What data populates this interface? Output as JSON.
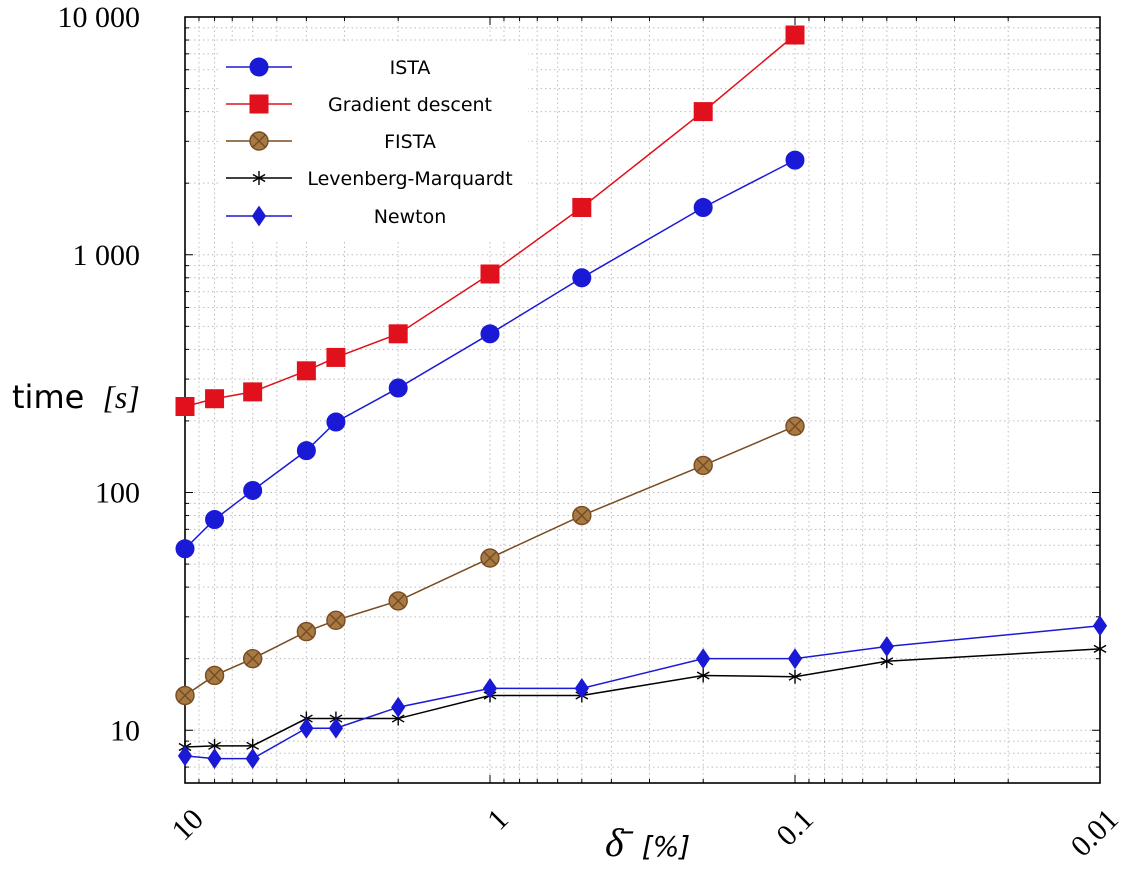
{
  "chart_data": {
    "type": "line",
    "title": "",
    "xlabel": "δ̄ [%]",
    "xlabel_parts": {
      "symbol": "δ̄",
      "unit": "[%]"
    },
    "ylabel": "time [s]",
    "ylabel_parts": {
      "word": "time",
      "unit": "[s]"
    },
    "x_scale": "log",
    "y_scale": "log",
    "x_reversed": true,
    "xlim": [
      10,
      0.01
    ],
    "ylim": [
      6,
      10000
    ],
    "x_ticks": [
      10,
      1,
      0.1,
      0.01
    ],
    "x_tick_labels": [
      "10",
      "1",
      "0.1",
      "0.01"
    ],
    "y_ticks": [
      10,
      100,
      1000,
      10000
    ],
    "y_tick_labels": [
      "10",
      "100",
      "1 000",
      "10 000"
    ],
    "grid": true,
    "legend_position": "top-left",
    "series": [
      {
        "name": "ISTA",
        "color": "#1a1ad6",
        "marker": "circle",
        "x": [
          10,
          8,
          6,
          4,
          3.2,
          2,
          1,
          0.5,
          0.2,
          0.1
        ],
        "y": [
          58,
          77,
          102,
          150,
          198,
          275,
          465,
          800,
          1580,
          2500
        ]
      },
      {
        "name": "Gradient descent",
        "color": "#e0101c",
        "marker": "square",
        "x": [
          10,
          8,
          6,
          4,
          3.2,
          2,
          1,
          0.5,
          0.2,
          0.1
        ],
        "y": [
          230,
          248,
          265,
          325,
          370,
          465,
          830,
          1580,
          4000,
          8400
        ]
      },
      {
        "name": "FISTA",
        "color": "#7a4a20",
        "marker": "circle-x",
        "x": [
          10,
          8,
          6,
          4,
          3.2,
          2,
          1,
          0.5,
          0.2,
          0.1
        ],
        "y": [
          14,
          17,
          20,
          26,
          29,
          35,
          53,
          80,
          130,
          190
        ]
      },
      {
        "name": "Levenberg-Marquardt",
        "color": "#000000",
        "marker": "star",
        "x": [
          10,
          8,
          6,
          4,
          3.2,
          2,
          1,
          0.5,
          0.2,
          0.1,
          0.05,
          0.01
        ],
        "y": [
          8.5,
          8.6,
          8.6,
          11.2,
          11.2,
          11.2,
          14,
          14,
          17,
          16.8,
          19.5,
          22
        ]
      },
      {
        "name": "Newton",
        "color": "#1a1ad6",
        "marker": "diamond",
        "x": [
          10,
          8,
          6,
          4,
          3.2,
          2,
          1,
          0.5,
          0.2,
          0.1,
          0.05,
          0.01
        ],
        "y": [
          7.8,
          7.6,
          7.6,
          10.2,
          10.2,
          12.5,
          15,
          15,
          20,
          20,
          22.5,
          27.5
        ]
      }
    ]
  }
}
